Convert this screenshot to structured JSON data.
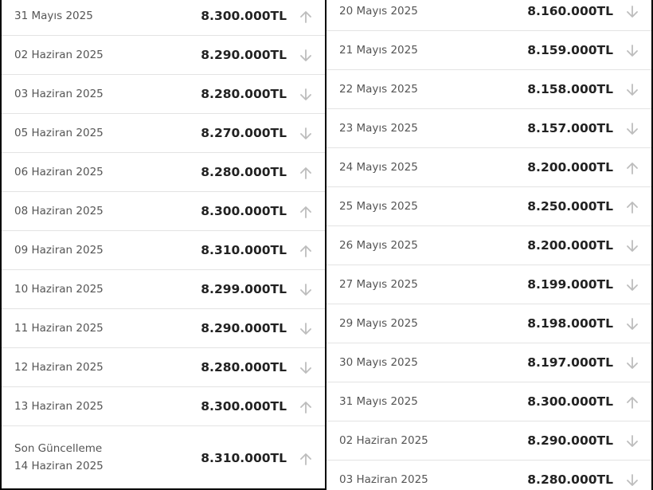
{
  "left": {
    "rows": [
      {
        "date": "31 Mayıs 2025",
        "price": "8.300.000TL",
        "dir": "up"
      },
      {
        "date": "02 Haziran 2025",
        "price": "8.290.000TL",
        "dir": "down"
      },
      {
        "date": "03 Haziran 2025",
        "price": "8.280.000TL",
        "dir": "down"
      },
      {
        "date": "05 Haziran 2025",
        "price": "8.270.000TL",
        "dir": "down"
      },
      {
        "date": "06 Haziran 2025",
        "price": "8.280.000TL",
        "dir": "up"
      },
      {
        "date": "08 Haziran 2025",
        "price": "8.300.000TL",
        "dir": "up"
      },
      {
        "date": "09 Haziran 2025",
        "price": "8.310.000TL",
        "dir": "up"
      },
      {
        "date": "10 Haziran 2025",
        "price": "8.299.000TL",
        "dir": "down"
      },
      {
        "date": "11 Haziran 2025",
        "price": "8.290.000TL",
        "dir": "down"
      },
      {
        "date": "12 Haziran 2025",
        "price": "8.280.000TL",
        "dir": "down"
      },
      {
        "date": "13 Haziran 2025",
        "price": "8.300.000TL",
        "dir": "up"
      }
    ],
    "last_update": {
      "label": "Son Güncelleme",
      "date": "14 Haziran 2025",
      "price": "8.310.000TL",
      "dir": "up"
    }
  },
  "right": {
    "rows": [
      {
        "date": "20 Mayıs 2025",
        "price": "8.160.000TL",
        "dir": "down"
      },
      {
        "date": "21 Mayıs 2025",
        "price": "8.159.000TL",
        "dir": "down"
      },
      {
        "date": "22 Mayıs 2025",
        "price": "8.158.000TL",
        "dir": "down"
      },
      {
        "date": "23 Mayıs 2025",
        "price": "8.157.000TL",
        "dir": "down"
      },
      {
        "date": "24 Mayıs 2025",
        "price": "8.200.000TL",
        "dir": "up"
      },
      {
        "date": "25 Mayıs 2025",
        "price": "8.250.000TL",
        "dir": "up"
      },
      {
        "date": "26 Mayıs 2025",
        "price": "8.200.000TL",
        "dir": "down"
      },
      {
        "date": "27 Mayıs 2025",
        "price": "8.199.000TL",
        "dir": "down"
      },
      {
        "date": "29 Mayıs 2025",
        "price": "8.198.000TL",
        "dir": "down"
      },
      {
        "date": "30 Mayıs 2025",
        "price": "8.197.000TL",
        "dir": "down"
      },
      {
        "date": "31 Mayıs 2025",
        "price": "8.300.000TL",
        "dir": "up"
      },
      {
        "date": "02 Haziran 2025",
        "price": "8.290.000TL",
        "dir": "down"
      },
      {
        "date": "03 Haziran 2025",
        "price": "8.280.000TL",
        "dir": "down"
      }
    ]
  },
  "colors": {
    "arrow": "#bdbdbd",
    "divider": "#e3e3e3",
    "date_text": "#555555",
    "price_text": "#222222"
  },
  "icons": {
    "up": "arrow-up-icon",
    "down": "arrow-down-icon"
  }
}
